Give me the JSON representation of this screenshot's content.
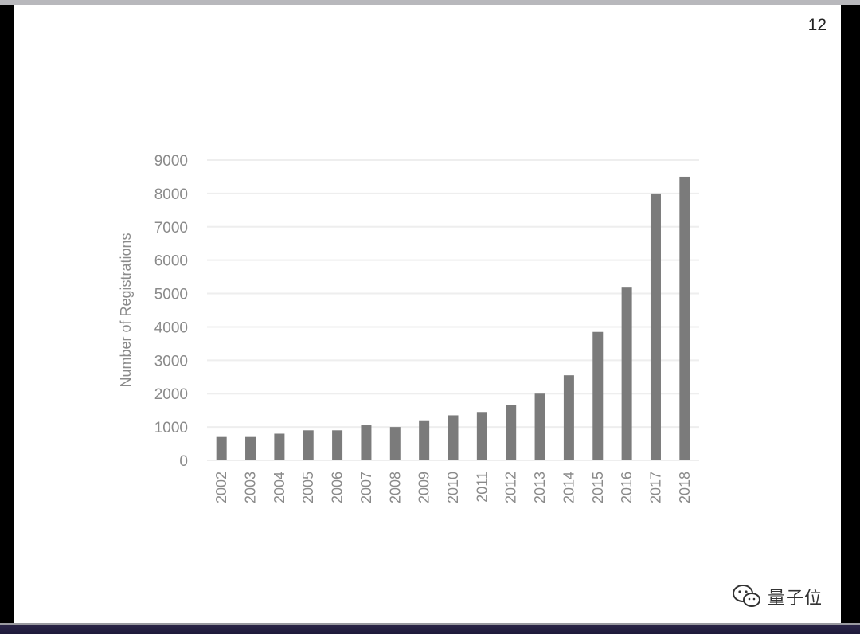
{
  "page_number": "12",
  "watermark": {
    "text": "量子位",
    "icon": "wechat-logo-icon"
  },
  "colors": {
    "bar": "#7b7b7b",
    "grid": "#eeeeee",
    "tick_text": "#8a8a8a",
    "background": "#ffffff"
  },
  "chart_data": {
    "type": "bar",
    "title": "",
    "xlabel": "",
    "ylabel": "Number of Registrations",
    "categories": [
      "2002",
      "2003",
      "2004",
      "2005",
      "2006",
      "2007",
      "2008",
      "2009",
      "2010",
      "2011",
      "2012",
      "2013",
      "2014",
      "2015",
      "2016",
      "2017",
      "2018"
    ],
    "values": [
      700,
      700,
      800,
      900,
      900,
      1050,
      1000,
      1200,
      1350,
      1450,
      1650,
      2000,
      2550,
      3850,
      5200,
      8000,
      8500
    ],
    "yticks": [
      "0",
      "1000",
      "2000",
      "3000",
      "4000",
      "5000",
      "6000",
      "7000",
      "8000",
      "9000"
    ],
    "ylim": [
      0,
      9000
    ],
    "grid": true,
    "legend": "none"
  }
}
